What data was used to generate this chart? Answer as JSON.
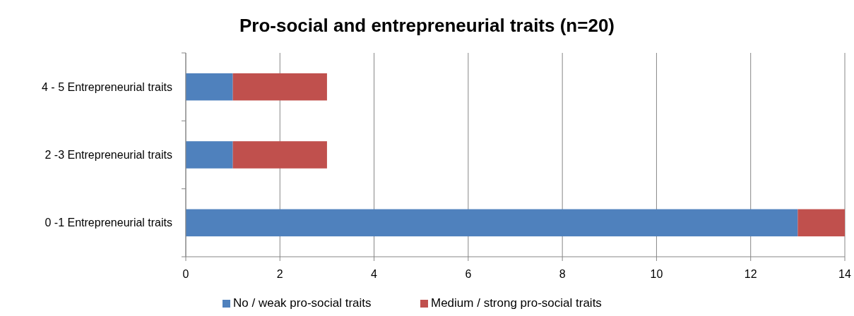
{
  "chart_data": {
    "type": "bar",
    "title": "Pro-social and entrepreneurial traits (n=20)",
    "orientation": "horizontal",
    "stacked": true,
    "categories": [
      "4 - 5 Entrepreneurial traits",
      "2 -3 Entrepreneurial traits",
      "0 -1 Entrepreneurial traits"
    ],
    "series": [
      {
        "name": "No / weak pro-social traits",
        "color": "#4f81bd",
        "values": [
          1,
          1,
          13
        ]
      },
      {
        "name": "Medium / strong pro-social traits",
        "color": "#c0504d",
        "values": [
          2,
          2,
          1
        ]
      }
    ],
    "xlim": [
      0,
      14
    ],
    "xticks": [
      0,
      2,
      4,
      6,
      8,
      10,
      12,
      14
    ],
    "grid": "x",
    "legend": "bottom"
  }
}
